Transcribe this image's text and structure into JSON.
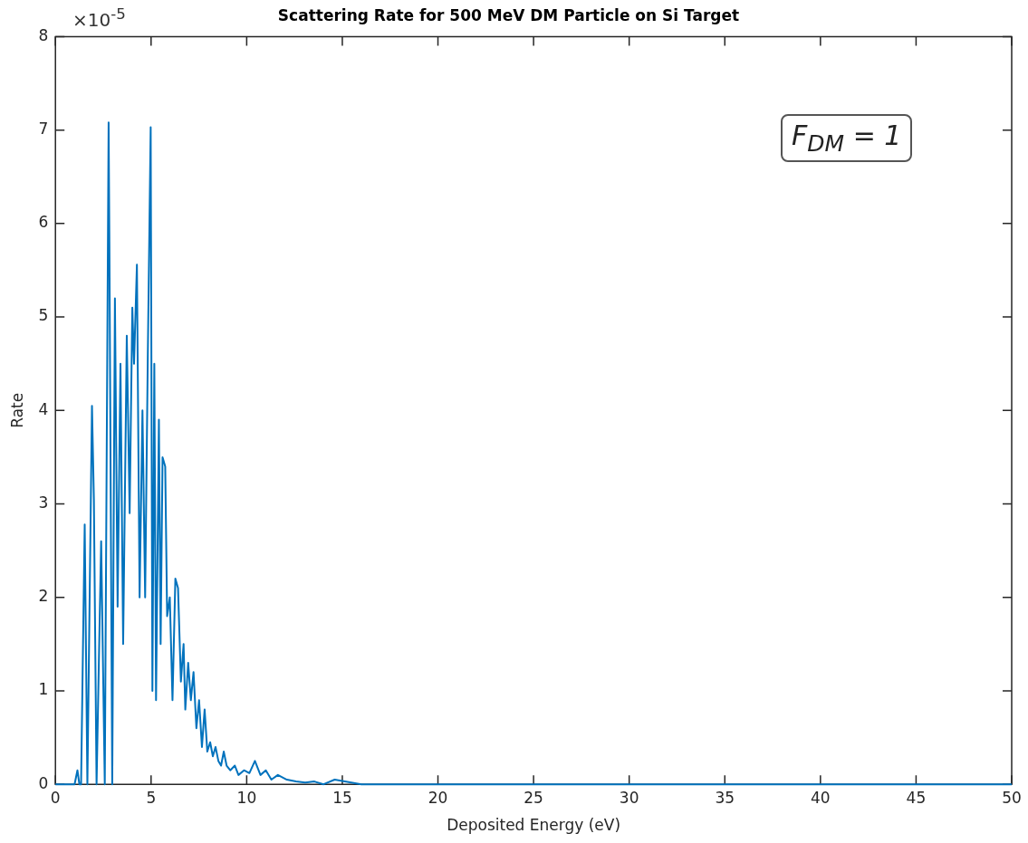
{
  "chart_data": {
    "type": "line",
    "title": "Scattering Rate for 500 MeV DM Particle on Si Target",
    "xlabel": "Deposited Energy (eV)",
    "ylabel": "Rate",
    "annotations": [
      "×10$^{-5}$",
      "F$_{DM}$ = 1"
    ],
    "xlim": [
      0,
      50
    ],
    "xticks": [
      0,
      5,
      10,
      15,
      20,
      25,
      30,
      35,
      40,
      45,
      50
    ],
    "ylim": [
      0,
      8
    ],
    "yticks": [
      0,
      1,
      2,
      3,
      4,
      5,
      6,
      7,
      8
    ],
    "grid": false,
    "legend": false,
    "marker": "none",
    "line_style": "solid",
    "series": [
      {
        "color": "#0072bd",
        "x": [
          0,
          1.0,
          1.15,
          1.25,
          1.34,
          1.53,
          1.67,
          1.91,
          2.01,
          2.15,
          2.39,
          2.58,
          2.78,
          2.82,
          2.97,
          3.11,
          3.25,
          3.4,
          3.54,
          3.73,
          3.88,
          4.02,
          4.11,
          4.26,
          4.4,
          4.55,
          4.69,
          4.83,
          4.98,
          5.07,
          5.17,
          5.26,
          5.41,
          5.5,
          5.6,
          5.74,
          5.84,
          5.98,
          6.12,
          6.27,
          6.41,
          6.56,
          6.7,
          6.79,
          6.94,
          7.08,
          7.22,
          7.37,
          7.51,
          7.66,
          7.8,
          7.94,
          8.09,
          8.23,
          8.37,
          8.52,
          8.66,
          8.8,
          8.95,
          9.14,
          9.38,
          9.57,
          9.86,
          10.14,
          10.43,
          10.72,
          11.0,
          11.29,
          11.63,
          12.1,
          12.58,
          13.06,
          13.54,
          14.02,
          14.6,
          16,
          50
        ],
        "values": [
          0,
          0,
          0.15,
          0,
          0,
          2.78,
          0,
          4.05,
          3.05,
          0,
          2.6,
          0,
          7.08,
          5.8,
          0,
          5.2,
          1.9,
          4.5,
          1.5,
          4.8,
          2.9,
          5.1,
          4.5,
          5.56,
          2.0,
          4.0,
          2.0,
          4.6,
          7.03,
          1.0,
          4.5,
          0.9,
          3.9,
          1.5,
          3.5,
          3.4,
          1.8,
          2.0,
          0.9,
          2.2,
          2.1,
          1.1,
          1.5,
          0.8,
          1.3,
          0.9,
          1.2,
          0.6,
          0.9,
          0.4,
          0.8,
          0.35,
          0.45,
          0.3,
          0.4,
          0.25,
          0.2,
          0.35,
          0.2,
          0.15,
          0.2,
          0.1,
          0.15,
          0.12,
          0.25,
          0.1,
          0.15,
          0.05,
          0.1,
          0.05,
          0.03,
          0.02,
          0.03,
          0,
          0.05,
          0,
          0
        ]
      }
    ]
  }
}
